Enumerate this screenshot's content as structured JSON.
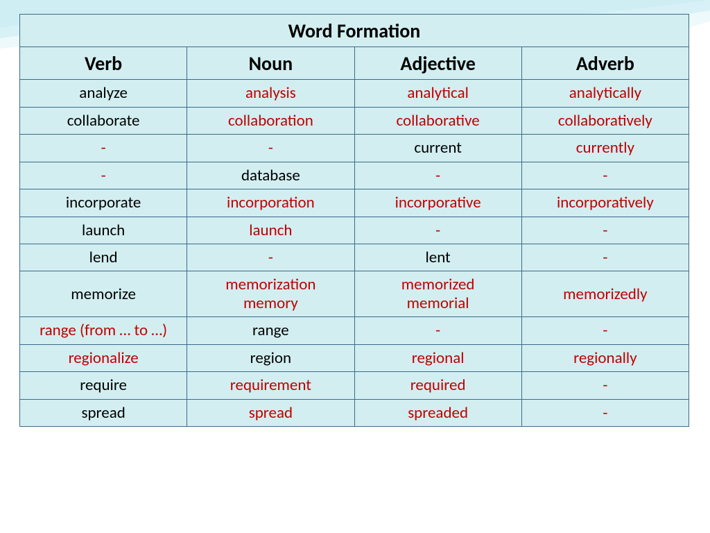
{
  "title": "Word Formation",
  "columns": [
    "Verb",
    "Noun",
    "Adjective",
    "Adverb"
  ],
  "rows": [
    [
      {
        "text": "analyze",
        "red": false
      },
      {
        "text": "analysis",
        "red": true
      },
      {
        "text": "analytical",
        "red": true
      },
      {
        "text": "analytically",
        "red": true
      }
    ],
    [
      {
        "text": "collaborate",
        "red": false
      },
      {
        "text": "collaboration",
        "red": true
      },
      {
        "text": "collaborative",
        "red": true
      },
      {
        "text": "collaboratively",
        "red": true
      }
    ],
    [
      {
        "text": "-",
        "red": true
      },
      {
        "text": "-",
        "red": true
      },
      {
        "text": "current",
        "red": false
      },
      {
        "text": "currently",
        "red": true
      }
    ],
    [
      {
        "text": "-",
        "red": true
      },
      {
        "text": "database",
        "red": false
      },
      {
        "text": "-",
        "red": true
      },
      {
        "text": "-",
        "red": true
      }
    ],
    [
      {
        "text": "incorporate",
        "red": false
      },
      {
        "text": "incorporation",
        "red": true
      },
      {
        "text": "incorporative",
        "red": true
      },
      {
        "text": "incorporatively",
        "red": true
      }
    ],
    [
      {
        "text": "launch",
        "red": false
      },
      {
        "text": "launch",
        "red": true
      },
      {
        "text": "-",
        "red": true
      },
      {
        "text": "-",
        "red": true
      }
    ],
    [
      {
        "text": "lend",
        "red": false
      },
      {
        "text": "-",
        "red": true
      },
      {
        "text": "lent",
        "red": false
      },
      {
        "text": "-",
        "red": true
      }
    ],
    [
      {
        "text": "memorize",
        "red": false
      },
      {
        "lines": [
          "memorization",
          "memory"
        ],
        "red": true
      },
      {
        "lines": [
          "memorized",
          "memorial"
        ],
        "red": true
      },
      {
        "text": "memorizedly",
        "red": true
      }
    ],
    [
      {
        "text": "range (from … to …)",
        "red": true
      },
      {
        "text": "range",
        "red": false
      },
      {
        "text": "-",
        "red": true
      },
      {
        "text": "-",
        "red": true
      }
    ],
    [
      {
        "text": "regionalize",
        "red": true
      },
      {
        "text": "region",
        "red": false
      },
      {
        "text": "regional",
        "red": true
      },
      {
        "text": "regionally",
        "red": true
      }
    ],
    [
      {
        "text": "require",
        "red": false
      },
      {
        "text": "requirement",
        "red": true
      },
      {
        "text": "required",
        "red": true
      },
      {
        "text": "-",
        "red": true
      }
    ],
    [
      {
        "text": "spread",
        "red": false
      },
      {
        "text": "spread",
        "red": true
      },
      {
        "text": "spreaded",
        "red": true
      },
      {
        "text": "-",
        "red": true
      }
    ]
  ],
  "style": {
    "cell_bg": "#d2eef0",
    "border_color": "#3a6a8a",
    "title_fontsize": 28,
    "header_fontsize": 28,
    "body_fontsize": 23,
    "red_color": "#c00000",
    "black_color": "#000000",
    "wave_color1": "#7ed0e0",
    "wave_color2": "#b9e8f0",
    "wave_color3": "#e6f7fa"
  }
}
